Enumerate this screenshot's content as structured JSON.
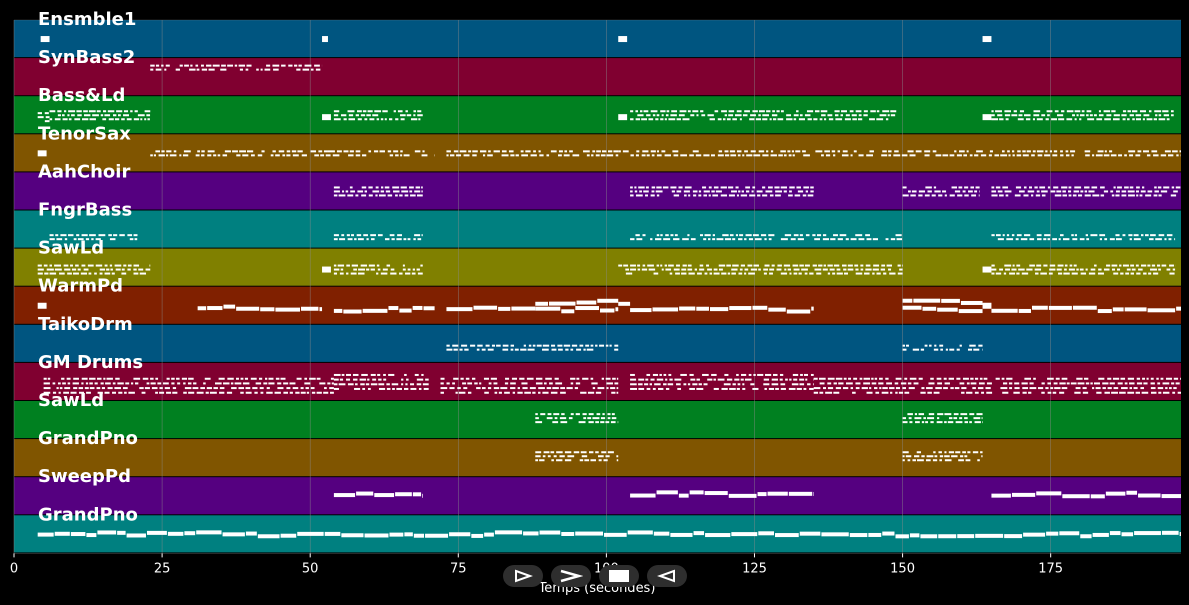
{
  "colors": {
    "background": "#000000",
    "grid": "#8a8a8a",
    "note": "#ffffff",
    "track_colors": [
      "#005580",
      "#800030",
      "#008020",
      "#805500",
      "#550080",
      "#008080",
      "#808000",
      "#802000",
      "#005580",
      "#800030",
      "#008020",
      "#805500",
      "#550080",
      "#008080"
    ]
  },
  "controls": [
    {
      "name": "play-button",
      "icon": "play-outline-icon"
    },
    {
      "name": "forward-button",
      "icon": "chevron-right-icon"
    },
    {
      "name": "stop-button",
      "icon": "stop-square-icon"
    },
    {
      "name": "reverse-button",
      "icon": "play-left-outline-icon"
    }
  ],
  "chart_data": {
    "type": "piano-roll",
    "xlabel": "Temps (secondes)",
    "xlim": [
      0,
      197
    ],
    "xticks": [
      0,
      25,
      50,
      75,
      100,
      125,
      150,
      175
    ],
    "grid": true,
    "tracks": [
      {
        "name": "Ensmble1",
        "notes": [
          [
            4.5,
            6,
            0.5
          ],
          [
            52,
            53,
            0.5
          ],
          [
            102,
            103.5,
            0.5
          ],
          [
            163.5,
            165,
            0.5
          ]
        ]
      },
      {
        "name": "SynBass2",
        "notes": [
          [
            23,
            52,
            0.25
          ]
        ],
        "pattern": "dense-small"
      },
      {
        "name": "Bass&Ld",
        "notes": [
          [
            4,
            6,
            0.55
          ],
          [
            6,
            23,
            0.5
          ],
          [
            52,
            53.5,
            0.55
          ],
          [
            54,
            69,
            0.5
          ],
          [
            102,
            103.5,
            0.55
          ],
          [
            104,
            150,
            0.5
          ],
          [
            163.5,
            165,
            0.55
          ],
          [
            165,
            196,
            0.5
          ]
        ],
        "pattern": "dense-multi"
      },
      {
        "name": "TenorSax",
        "notes": [
          [
            4,
            5.5,
            0.5
          ],
          [
            23,
            53,
            0.5
          ],
          [
            53,
            71,
            0.5
          ],
          [
            73,
            102,
            0.5
          ],
          [
            102,
            197,
            0.5
          ]
        ],
        "pattern": "dense-small"
      },
      {
        "name": "AahChoir",
        "notes": [
          [
            54,
            69,
            0.5
          ],
          [
            104,
            135,
            0.5
          ],
          [
            150,
            163,
            0.5
          ],
          [
            165,
            197,
            0.5
          ]
        ],
        "pattern": "dense-multi"
      },
      {
        "name": "FngrBass",
        "notes": [
          [
            6,
            21,
            0.7
          ],
          [
            54,
            69,
            0.7
          ],
          [
            104,
            150,
            0.7
          ],
          [
            165,
            196,
            0.7
          ]
        ],
        "pattern": "dense-small"
      },
      {
        "name": "SawLd",
        "notes": [
          [
            4,
            6,
            0.55
          ],
          [
            6,
            23,
            0.55
          ],
          [
            52,
            53.5,
            0.55
          ],
          [
            54,
            69,
            0.55
          ],
          [
            102,
            104,
            0.55
          ],
          [
            104,
            150,
            0.55
          ],
          [
            163.5,
            165,
            0.55
          ],
          [
            165,
            196,
            0.55
          ]
        ],
        "pattern": "dense-multi"
      },
      {
        "name": "WarmPd",
        "notes": [
          [
            4,
            5.5,
            0.5
          ],
          [
            31,
            52,
            0.55
          ],
          [
            54,
            71,
            0.6
          ],
          [
            73,
            88,
            0.6
          ],
          [
            88,
            102,
            0.4
          ],
          [
            88,
            102,
            0.6
          ],
          [
            102,
            104,
            0.5
          ],
          [
            104,
            135,
            0.6
          ],
          [
            150,
            163.5,
            0.4
          ],
          [
            150,
            163.5,
            0.6
          ],
          [
            163.5,
            165,
            0.5
          ],
          [
            165,
            197,
            0.6
          ]
        ],
        "pattern": "long"
      },
      {
        "name": "TaikoDrm",
        "notes": [
          [
            73,
            102,
            0.6
          ],
          [
            150,
            163.5,
            0.6
          ]
        ],
        "pattern": "dense-small"
      },
      {
        "name": "GM Drums",
        "notes": [
          [
            5,
            54,
            0.6
          ],
          [
            54,
            70,
            0.5
          ],
          [
            72,
            102,
            0.6
          ],
          [
            104,
            135,
            0.5
          ],
          [
            135,
            197,
            0.6
          ]
        ],
        "pattern": "drums"
      },
      {
        "name": "SawLd",
        "notes": [
          [
            88,
            102,
            0.45
          ],
          [
            150,
            163.5,
            0.45
          ]
        ],
        "pattern": "dense-multi"
      },
      {
        "name": "GrandPno",
        "notes": [
          [
            88,
            102,
            0.45
          ],
          [
            150,
            163.5,
            0.45
          ]
        ],
        "pattern": "dense-multi"
      },
      {
        "name": "SweepPd",
        "notes": [
          [
            54,
            69,
            0.45
          ],
          [
            104,
            135,
            0.45
          ],
          [
            165,
            197,
            0.45
          ]
        ],
        "pattern": "long"
      },
      {
        "name": "GrandPno",
        "notes": [
          [
            4,
            197,
            0.5
          ]
        ],
        "pattern": "long"
      }
    ]
  }
}
